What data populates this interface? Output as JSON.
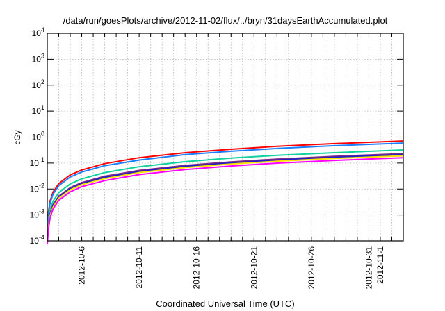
{
  "chart_data": {
    "type": "line",
    "title": "/data/run/goesPlots/archive/2012-11-02/flux/../bryn/31daysEarthAccumulated.plot",
    "xlabel": "Coordinated Universal Time (UTC)",
    "ylabel": "cGy",
    "yscale": "log",
    "ylim": [
      0.0001,
      10000
    ],
    "x_unit": "days since 2012-10-03 00:00 UTC",
    "xlim": [
      0,
      31
    ],
    "grid": true,
    "legend": "none",
    "y_ticks": [
      {
        "value": 0.0001,
        "base": "10",
        "exp": "-4"
      },
      {
        "value": 0.001,
        "base": "10",
        "exp": "-3"
      },
      {
        "value": 0.01,
        "base": "10",
        "exp": "-2"
      },
      {
        "value": 0.1,
        "base": "10",
        "exp": "-1"
      },
      {
        "value": 1,
        "base": "10",
        "exp": "0"
      },
      {
        "value": 10,
        "base": "10",
        "exp": "1"
      },
      {
        "value": 100,
        "base": "10",
        "exp": "2"
      },
      {
        "value": 1000,
        "base": "10",
        "exp": "3"
      },
      {
        "value": 10000,
        "base": "10",
        "exp": "4"
      }
    ],
    "x_ticks": [
      {
        "day": 3,
        "label": "2012-10-6"
      },
      {
        "day": 8,
        "label": "2012-10-11"
      },
      {
        "day": 13,
        "label": "2012-10-16"
      },
      {
        "day": 18,
        "label": "2012-10-21"
      },
      {
        "day": 23,
        "label": "2012-10-26"
      },
      {
        "day": 28,
        "label": "2012-10-31"
      },
      {
        "day": 29,
        "label": "2012-11-1"
      }
    ],
    "x": [
      0.1,
      0.25,
      0.5,
      1,
      2,
      3,
      5,
      8,
      12,
      16,
      20,
      25,
      31
    ],
    "series": [
      {
        "color": "#ff0000",
        "values": [
          0.0013,
          0.0035,
          0.0076,
          0.016,
          0.035,
          0.054,
          0.095,
          0.16,
          0.25,
          0.34,
          0.44,
          0.56,
          0.71
        ]
      },
      {
        "color": "#1a7fff",
        "values": [
          0.0011,
          0.0029,
          0.0063,
          0.0135,
          0.029,
          0.045,
          0.079,
          0.13,
          0.21,
          0.285,
          0.365,
          0.465,
          0.59
        ]
      },
      {
        "color": "#10d0a0",
        "values": [
          0.00058,
          0.0016,
          0.0034,
          0.0073,
          0.0157,
          0.0245,
          0.043,
          0.072,
          0.113,
          0.155,
          0.198,
          0.25,
          0.32
        ]
      },
      {
        "color": "#7a2a8a",
        "values": [
          0.00042,
          0.0011,
          0.0025,
          0.0053,
          0.0113,
          0.0176,
          0.031,
          0.052,
          0.081,
          0.111,
          0.142,
          0.181,
          0.23
        ]
      },
      {
        "color": "#2020c8",
        "values": [
          0.00038,
          0.001,
          0.0022,
          0.0048,
          0.0103,
          0.0161,
          0.028,
          0.047,
          0.074,
          0.101,
          0.13,
          0.166,
          0.21
        ]
      },
      {
        "color": "#ffe000",
        "values": [
          0.00035,
          0.00095,
          0.002,
          0.0044,
          0.0093,
          0.0146,
          0.025,
          0.043,
          0.067,
          0.092,
          0.117,
          0.15,
          0.19
        ]
      },
      {
        "color": "#ff00ff",
        "values": [
          0.00029,
          0.0008,
          0.0017,
          0.0037,
          0.0078,
          0.0123,
          0.021,
          0.036,
          0.056,
          0.077,
          0.099,
          0.126,
          0.16
        ]
      }
    ]
  }
}
